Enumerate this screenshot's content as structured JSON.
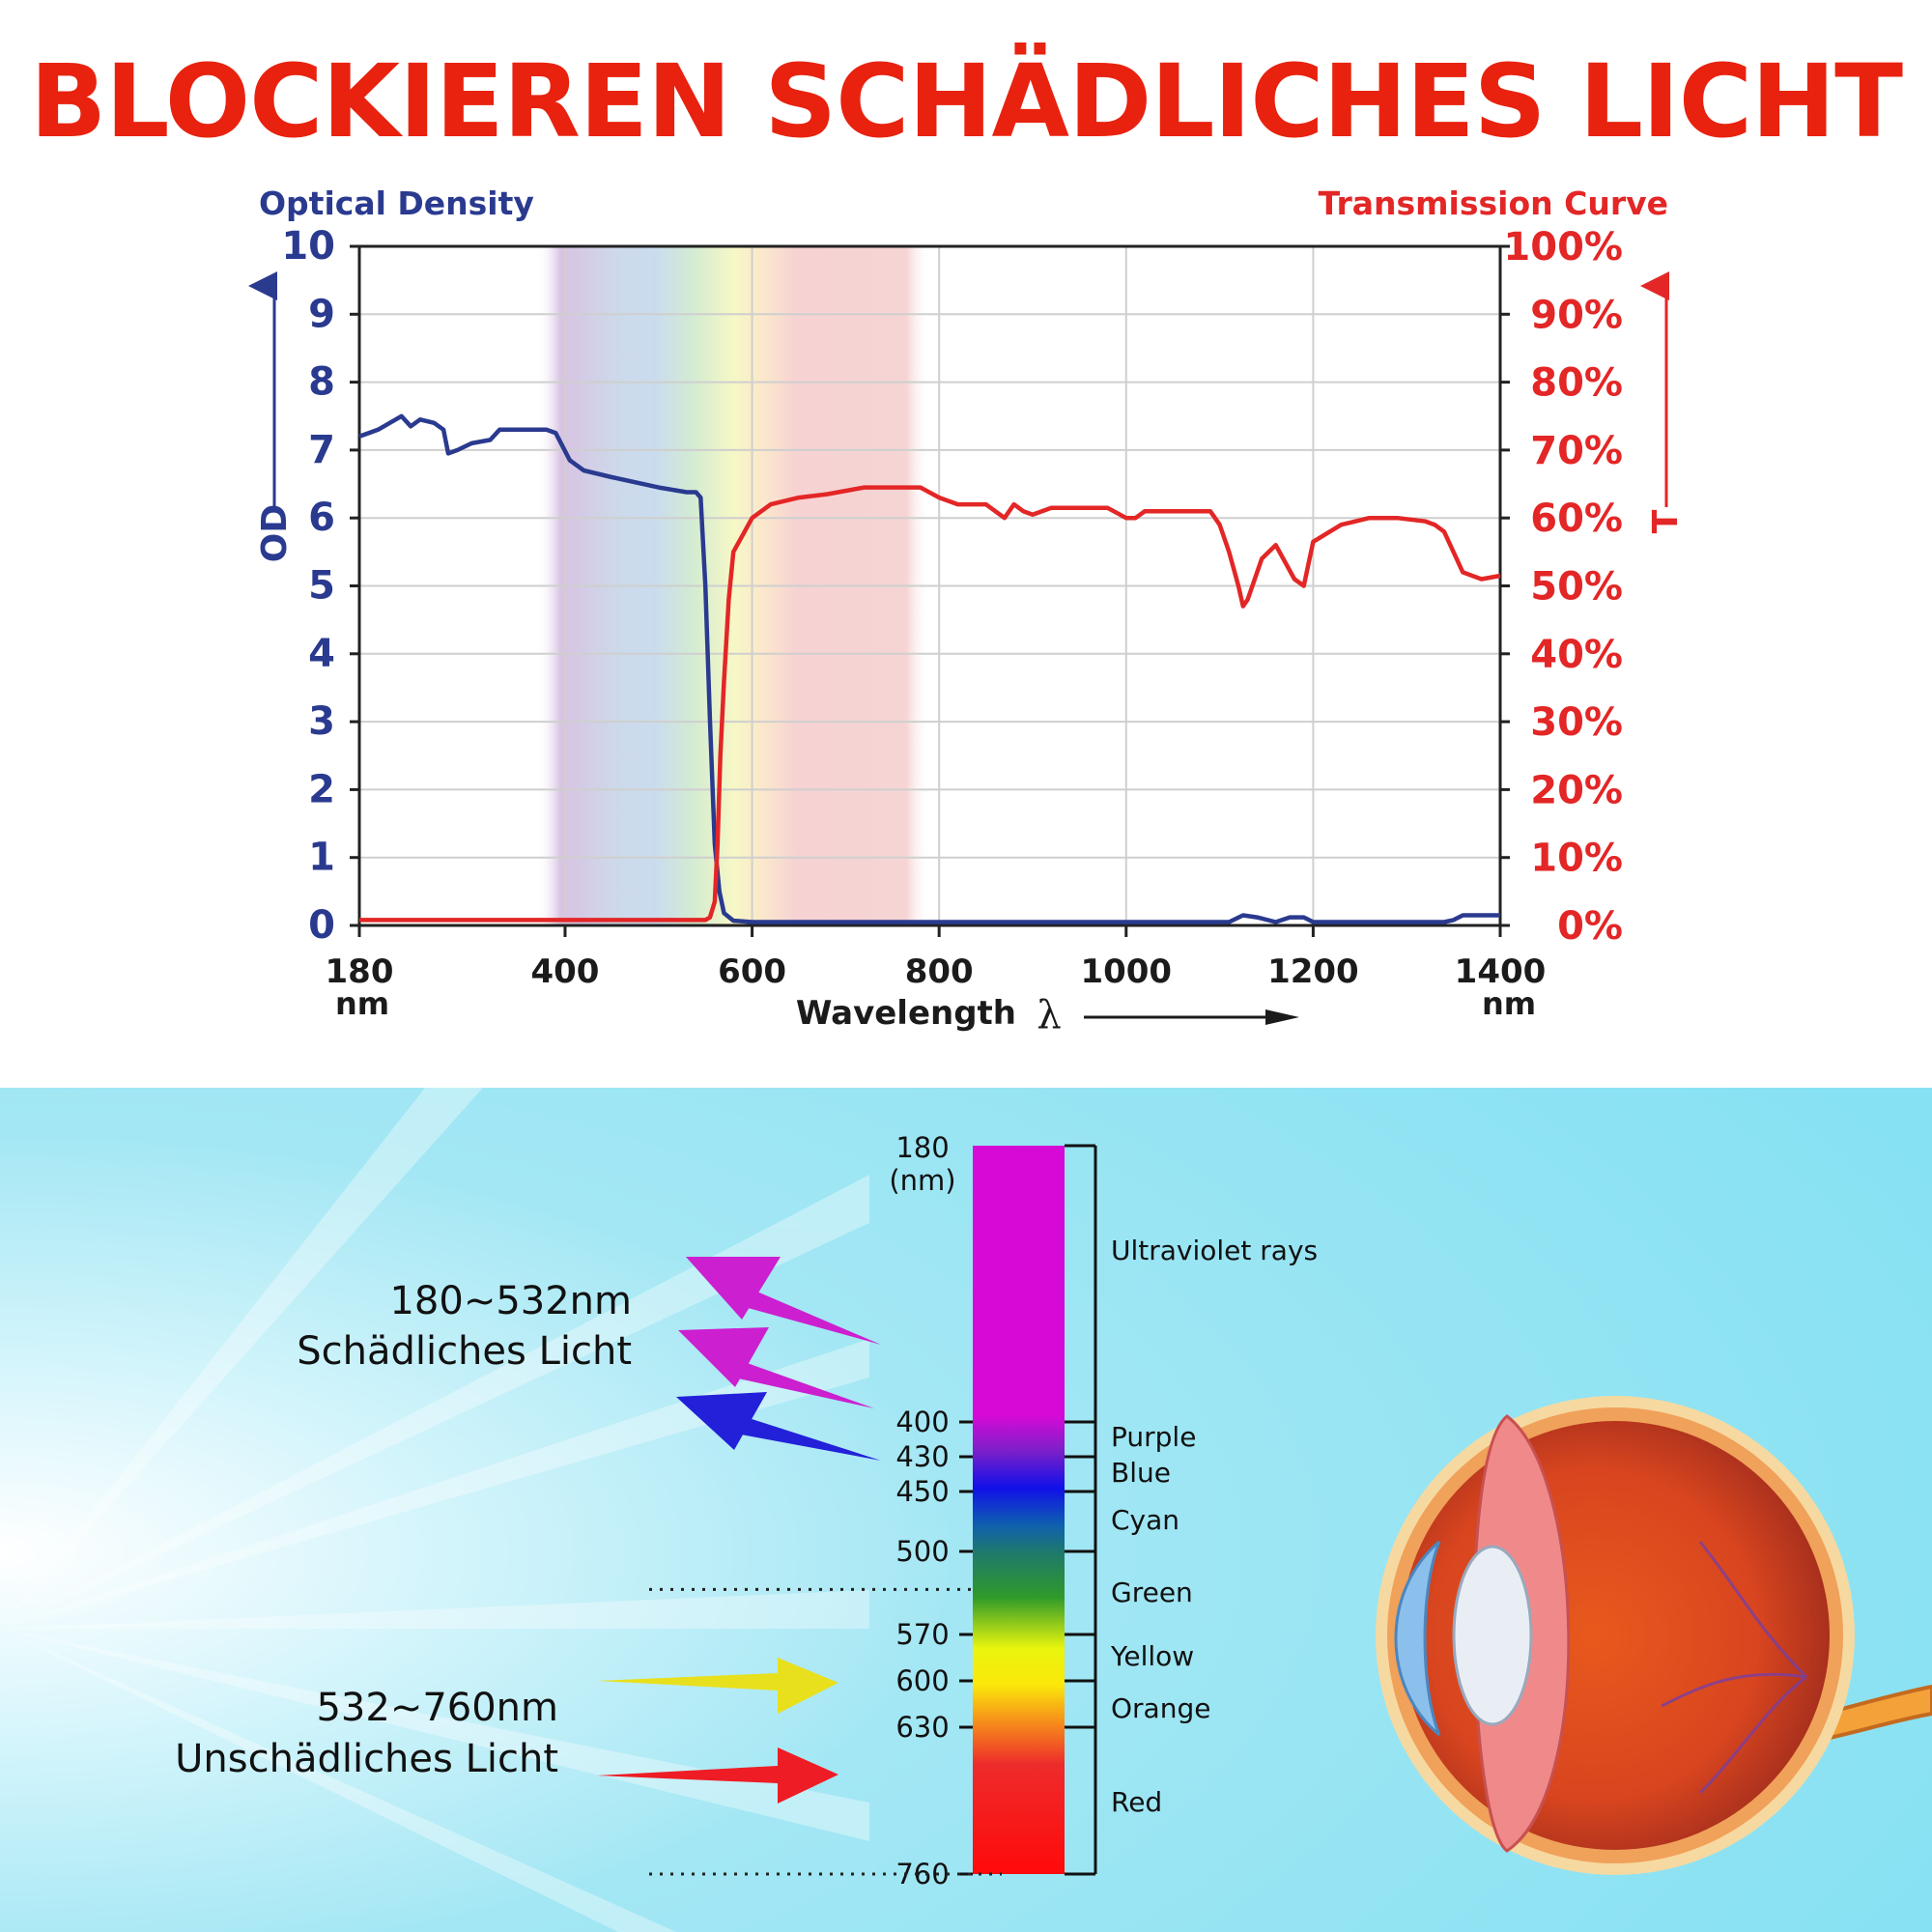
{
  "headline": "BLOCKIEREN SCHÄDLICHES LICHT",
  "chart_data": {
    "type": "line",
    "y_left_title": "Optical Density",
    "y_right_title": "Transmission Curve",
    "y_left_axis_label": "OD",
    "y_right_axis_label": "T",
    "xlabel": "Wavelength",
    "x_symbol": "λ",
    "x_unit": "nm",
    "xlim": [
      180,
      1400
    ],
    "ylim_left": [
      0,
      10
    ],
    "ylim_right": [
      0,
      100
    ],
    "x_ticks": [
      "180",
      "400",
      "600",
      "800",
      "1000",
      "1200",
      "1400"
    ],
    "y_left_ticks": [
      "0",
      "1",
      "2",
      "3",
      "4",
      "5",
      "6",
      "7",
      "8",
      "9",
      "10"
    ],
    "y_right_ticks": [
      "0%",
      "10%",
      "20%",
      "30%",
      "40%",
      "50%",
      "60%",
      "70%",
      "80%",
      "90%",
      "100%"
    ],
    "grid": true,
    "colors": {
      "od": "#2a3a8f",
      "transmission": "#e32626"
    },
    "spectrum_band": [
      370,
      790
    ],
    "series": [
      {
        "axis": "left",
        "x": [
          180,
          200,
          225,
          235,
          245,
          260,
          270,
          275,
          285,
          300,
          320,
          330,
          340,
          350,
          380,
          390,
          405,
          420,
          450,
          500,
          530,
          540,
          545,
          550,
          555,
          560,
          565,
          570,
          580,
          600,
          700,
          900,
          1100,
          1110,
          1125,
          1140,
          1160,
          1175,
          1190,
          1200,
          1300,
          1340,
          1350,
          1360,
          1400
        ],
        "y": [
          7.2,
          7.3,
          7.5,
          7.35,
          7.45,
          7.4,
          7.3,
          6.95,
          7.0,
          7.1,
          7.15,
          7.3,
          7.3,
          7.3,
          7.3,
          7.25,
          6.85,
          6.7,
          6.6,
          6.45,
          6.38,
          6.38,
          6.3,
          5.0,
          3.0,
          1.2,
          0.5,
          0.18,
          0.07,
          0.05,
          0.05,
          0.05,
          0.05,
          0.05,
          0.15,
          0.12,
          0.05,
          0.12,
          0.12,
          0.05,
          0.05,
          0.05,
          0.08,
          0.15,
          0.15
        ]
      },
      {
        "axis": "right",
        "x": [
          180,
          500,
          540,
          550,
          555,
          560,
          563,
          566,
          570,
          575,
          580,
          590,
          600,
          620,
          650,
          680,
          700,
          720,
          750,
          780,
          800,
          820,
          850,
          860,
          870,
          880,
          890,
          900,
          920,
          950,
          980,
          1000,
          1010,
          1020,
          1040,
          1060,
          1090,
          1100,
          1110,
          1120,
          1125,
          1130,
          1145,
          1160,
          1180,
          1190,
          1200,
          1230,
          1260,
          1290,
          1320,
          1330,
          1340,
          1350,
          1360,
          1380,
          1400
        ],
        "y": [
          0.8,
          0.8,
          0.8,
          0.8,
          1.2,
          3.5,
          12.0,
          25.0,
          36.0,
          48.0,
          55.0,
          57.5,
          60.0,
          62.0,
          63.0,
          63.5,
          64.0,
          64.5,
          64.5,
          64.5,
          63.0,
          62.0,
          62.0,
          61.0,
          60.0,
          62.0,
          61.0,
          60.5,
          61.5,
          61.5,
          61.5,
          60.0,
          60.0,
          61.0,
          61.0,
          61.0,
          61.0,
          59.0,
          55.0,
          50.0,
          47.0,
          48.0,
          54.0,
          56.0,
          51.0,
          50.0,
          56.5,
          59.0,
          60.0,
          60.0,
          59.5,
          59.0,
          58.0,
          55.0,
          52.0,
          51.0,
          51.5
        ]
      }
    ]
  },
  "spectrum": {
    "top_label_value": "180",
    "top_label_unit": "(nm)",
    "ticks": [
      {
        "nm": 400,
        "label": "400"
      },
      {
        "nm": 430,
        "label": "430"
      },
      {
        "nm": 450,
        "label": "450"
      },
      {
        "nm": 500,
        "label": "500"
      },
      {
        "nm": 570,
        "label": "570"
      },
      {
        "nm": 600,
        "label": "600"
      },
      {
        "nm": 630,
        "label": "630"
      },
      {
        "nm": 760,
        "label": "760"
      }
    ],
    "bands": [
      {
        "from": 180,
        "to": 400,
        "name": "Ultraviolet rays"
      },
      {
        "from": 400,
        "to": 430,
        "name": "Purple"
      },
      {
        "from": 430,
        "to": 450,
        "name": "Blue"
      },
      {
        "from": 450,
        "to": 500,
        "name": "Cyan"
      },
      {
        "from": 500,
        "to": 570,
        "name": "Green"
      },
      {
        "from": 570,
        "to": 600,
        "name": "Yellow"
      },
      {
        "from": 600,
        "to": 630,
        "name": "Orange"
      },
      {
        "from": 630,
        "to": 760,
        "name": "Red"
      }
    ],
    "harmful": {
      "range": "180~532nm",
      "label": "Schädliches Licht"
    },
    "harmless": {
      "range": "532~760nm",
      "label": "Unschädliches Licht"
    },
    "arrow_colors": {
      "magenta": "#cc1fd0",
      "blue": "#2320d9",
      "yellow": "#e8e01c",
      "red": "#ee1c24"
    }
  }
}
